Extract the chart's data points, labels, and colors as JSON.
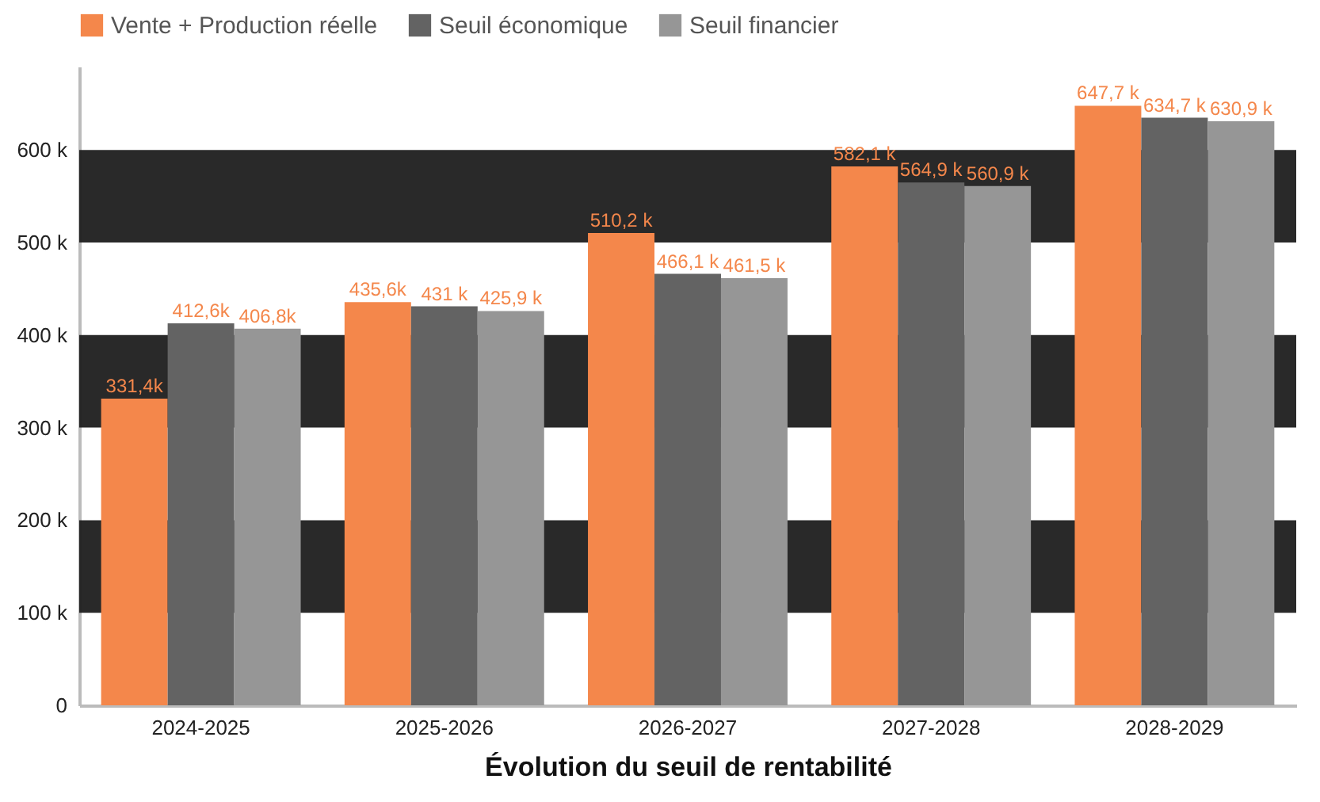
{
  "chart_data": {
    "type": "bar",
    "xlabel": "Évolution du seuil de rentabilité",
    "categories": [
      "2024-2025",
      "2025-2026",
      "2026-2027",
      "2027-2028",
      "2028-2029"
    ],
    "series": [
      {
        "name": "Vente + Production réelle",
        "color": "#f4874b",
        "values": [
          331.4,
          435.6,
          510.2,
          582.1,
          647.7
        ],
        "value_labels": [
          "331,4k",
          "435,6k",
          "510,2 k",
          "582,1 k",
          "647,7 k"
        ]
      },
      {
        "name": "Seuil économique",
        "color": "#636363",
        "values": [
          412.6,
          431,
          466.1,
          564.9,
          634.7
        ],
        "value_labels": [
          "412,6k",
          "431 k",
          "466,1 k",
          "564,9 k",
          "634,7 k"
        ]
      },
      {
        "name": "Seuil financier",
        "color": "#969696",
        "values": [
          406.8,
          425.9,
          461.5,
          560.9,
          630.9
        ],
        "value_labels": [
          "406,8k",
          "425,9 k",
          "461,5 k",
          "560,9 k",
          "630,9 k"
        ]
      }
    ],
    "ylim": [
      0,
      690
    ],
    "yticks": [
      0,
      {
        "value": 100,
        "label": "100 k"
      },
      {
        "value": 200,
        "label": "200 k"
      },
      {
        "value": 300,
        "label": "300 k"
      },
      {
        "value": 400,
        "label": "400 k"
      },
      {
        "value": 500,
        "label": "500 k"
      },
      {
        "value": 600,
        "label": "600 k"
      }
    ],
    "bands": [
      {
        "axis": "y",
        "from": 100,
        "to": 200,
        "color": "#1e1e1e"
      },
      {
        "axis": "y",
        "from": 300,
        "to": 400,
        "color": "#1e1e1e"
      },
      {
        "axis": "y",
        "from": 500,
        "to": 600,
        "color": "#1e1e1e"
      }
    ],
    "legend": "top"
  }
}
